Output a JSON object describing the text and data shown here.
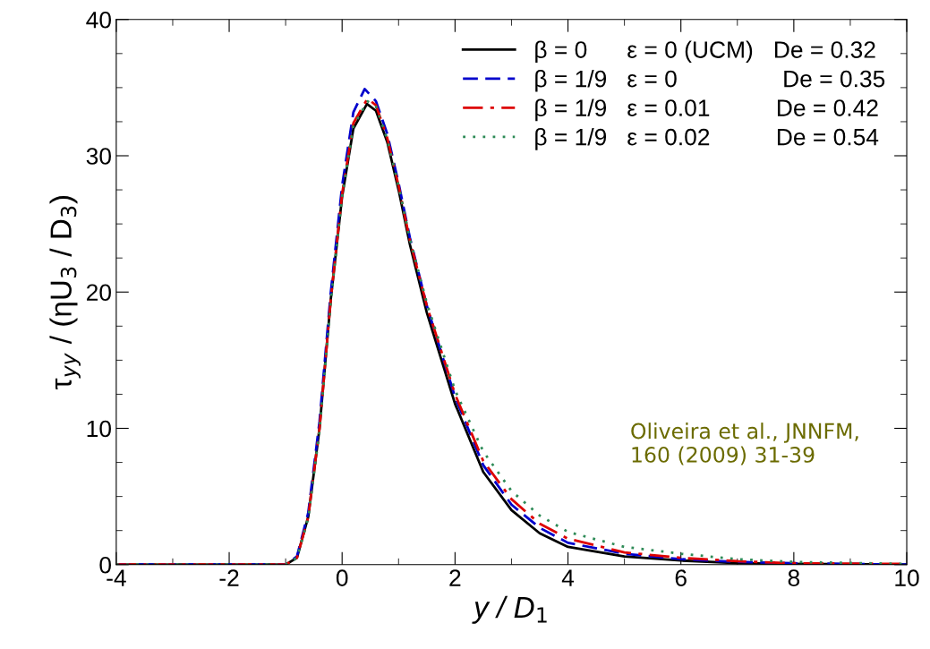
{
  "chart_data": {
    "type": "line",
    "xlabel": "y / D$_{1}$",
    "ylabel": "τ$_{yy}$ / (ηU$_{3}$ / D$_{3}$)",
    "xlim": [
      -4,
      10
    ],
    "xticks": [
      -4,
      -2,
      0,
      2,
      4,
      6,
      8,
      10
    ],
    "ylim": [
      0,
      40
    ],
    "yticks": [
      0,
      10,
      20,
      30,
      40
    ],
    "grid": false,
    "legend": "top right",
    "annotations": [
      "Oliveira et al., JNNFM,\n160 (2009) 31-39"
    ],
    "series": [
      {
        "name": "β = 0      ε = 0 (UCM)   De = 0.32",
        "color": "#000000",
        "line_style": "solid",
        "x": [
          -4,
          -1,
          -0.8,
          -0.6,
          -0.4,
          -0.2,
          0,
          0.2,
          0.44,
          0.6,
          0.8,
          1,
          1.2,
          1.5,
          2,
          2.5,
          3,
          3.5,
          4,
          5,
          6,
          7,
          8,
          10
        ],
        "values": [
          0,
          0,
          0.5,
          3.5,
          10,
          19.5,
          27,
          32,
          33.8,
          33.3,
          31,
          27.5,
          23.5,
          18.5,
          11.8,
          6.8,
          4.0,
          2.3,
          1.3,
          0.6,
          0.3,
          0.1,
          0.05,
          0
        ]
      },
      {
        "name": "β = 1/9   ε = 0                De = 0.35",
        "color": "#0000cc",
        "line_style": "dashed",
        "x": [
          -4,
          -1,
          -0.8,
          -0.6,
          -0.4,
          -0.2,
          0,
          0.2,
          0.4,
          0.6,
          0.8,
          1,
          1.2,
          1.5,
          2,
          2.5,
          3,
          3.5,
          4,
          5,
          6,
          7,
          8,
          10
        ],
        "values": [
          0,
          0,
          0.6,
          3.8,
          10.5,
          20,
          27.8,
          33.2,
          34.9,
          34,
          31.6,
          28,
          24,
          19,
          12.3,
          7.3,
          4.4,
          2.7,
          1.6,
          0.8,
          0.4,
          0.2,
          0.1,
          0
        ]
      },
      {
        "name": "β = 1/9   ε = 0.01          De = 0.42",
        "color": "#dd0000",
        "line_style": "dashdot",
        "x": [
          -4,
          -1,
          -0.8,
          -0.6,
          -0.4,
          -0.2,
          0,
          0.2,
          0.45,
          0.6,
          0.8,
          1,
          1.2,
          1.5,
          2,
          2.5,
          3,
          3.5,
          4,
          5,
          6,
          7,
          8,
          10
        ],
        "values": [
          0,
          0,
          0.5,
          3.5,
          10,
          19.5,
          27.2,
          32.4,
          34.2,
          33.7,
          31.3,
          27.8,
          23.8,
          19,
          12.5,
          7.6,
          4.8,
          3.0,
          1.9,
          0.9,
          0.5,
          0.25,
          0.1,
          0.05
        ]
      },
      {
        "name": "β = 1/9   ε = 0.02          De = 0.54",
        "color": "#2e8b57",
        "line_style": "dotted",
        "x": [
          -4,
          -1,
          -0.8,
          -0.6,
          -0.4,
          -0.2,
          0,
          0.2,
          0.45,
          0.6,
          0.8,
          1,
          1.2,
          1.5,
          2,
          2.5,
          3,
          3.5,
          4,
          5,
          6,
          7,
          8,
          10
        ],
        "values": [
          0,
          0,
          0.5,
          3.4,
          9.8,
          19.3,
          27,
          32.2,
          34,
          33.6,
          31.2,
          27.8,
          23.9,
          19.2,
          12.8,
          8.3,
          5.4,
          3.6,
          2.4,
          1.3,
          0.8,
          0.4,
          0.2,
          0.05
        ]
      }
    ]
  }
}
